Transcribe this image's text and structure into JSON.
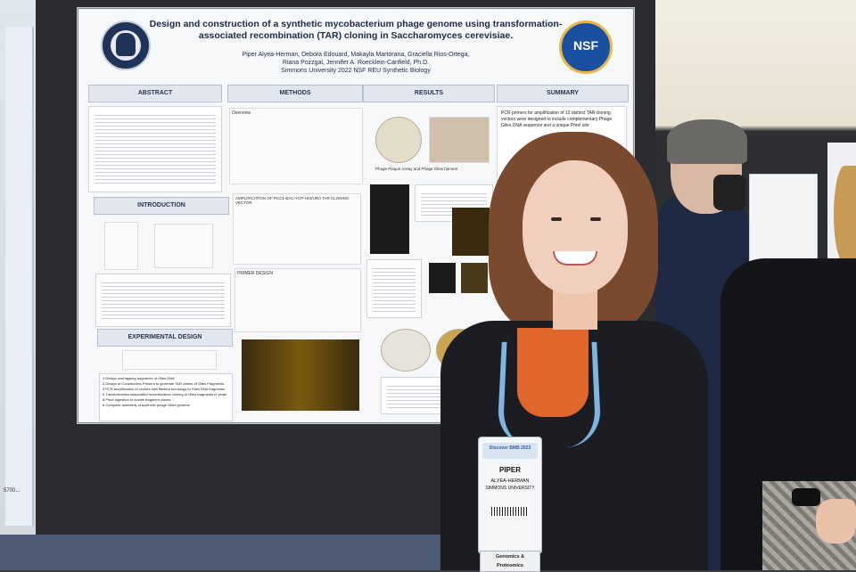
{
  "poster": {
    "title_line1": "Design and construction of a synthetic mycobacterium phage genome using transformation-",
    "title_line2": "associated recombination (TAR) cloning in Saccharomyces cerevisiae.",
    "authors_line1": "Piper Alyea-Herman, Debora Edouard, Makayla Martorana, Graciella Rios-Ortega,",
    "authors_line2": "Riana Pozzgai, Jennifer A. Roecklein-Canfield, Ph.D.",
    "affiliation": "Simmons University 2022 NSF REU Synthetic Biology",
    "nsf_logo_text": "NSF",
    "sections": {
      "abstract": "ABSTRACT",
      "methods": "METHODS",
      "results": "RESULTS",
      "summary": "SUMMARY",
      "introduction": "INTRODUCTION",
      "experimental_design": "EXPERIMENTAL DESIGN"
    },
    "methods_overview": "Overview",
    "amplification_heading": "AMPLIFICATION OF PCC1-BAC-YCP-HIS/URA TAR CLONING VECTOR",
    "primer_design": "PRIMER DESIGN",
    "phage_plaque_caption": "Phage Plaque Assay and Phage Giles harvest",
    "summary_first": "PCR primers for amplification of 12 distinct TAR cloning vectors were designed to include complementary Phage Giles DNA sequence and a unique PmeI site",
    "experimental_steps": [
      "1.Design overlapping fragments of Giles DNA",
      "2.Design of Construction Primers to generate TAR clones of Giles Fragments",
      "3.PCR amplification of vectors with flanked homology to Giles DNA fragments",
      "4.Transformation-associated recombination cloning of Giles fragments in yeast",
      "5.PmeI digestion to isolate fragment clones",
      "6.Complete assembly of synthetic phage Giles genome"
    ]
  },
  "badge": {
    "event": "Discover BMB 2023",
    "first_name": "PIPER",
    "last_name": "ALYEA-HERMAN",
    "organization": "SIMMONS UNIVERSITY",
    "ribbon_line1": "Genomics &",
    "ribbon_line2": "Proteomics"
  },
  "left_poster_fragment": "5700..."
}
